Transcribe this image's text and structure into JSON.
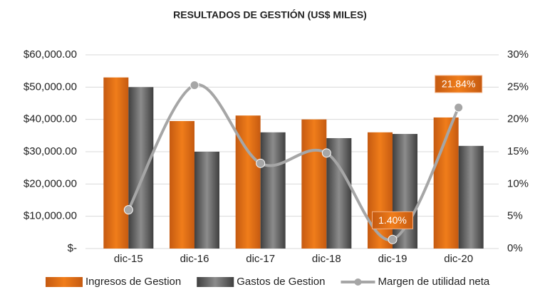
{
  "chart_data": {
    "type": "bar-line",
    "title": "RESULTADOS DE GESTIÓN (US$ MILES)",
    "categories": [
      "dic-15",
      "dic-16",
      "dic-17",
      "dic-18",
      "dic-19",
      "dic-20"
    ],
    "series": [
      {
        "name": "Ingresos de Gestion",
        "type": "bar",
        "color": "#e36c0a",
        "values": [
          53000,
          39500,
          41200,
          40000,
          36000,
          40600
        ]
      },
      {
        "name": "Gastos de Gestion",
        "type": "bar",
        "color": "#595959",
        "values": [
          50000,
          30000,
          36000,
          34200,
          35500,
          31800
        ]
      },
      {
        "name": "Margen de utilidad neta",
        "type": "line",
        "axis": "y2",
        "color": "#a6a6a6",
        "values": [
          6.0,
          25.3,
          13.2,
          14.8,
          1.4,
          21.84
        ],
        "value_labels": [
          null,
          null,
          null,
          null,
          "1.40%",
          "21.84%"
        ]
      }
    ],
    "ylim": [
      0,
      60000
    ],
    "yticks": [
      {
        "value": 0,
        "label": "$-"
      },
      {
        "value": 10000,
        "label": "$10,000.00"
      },
      {
        "value": 20000,
        "label": "$20,000.00"
      },
      {
        "value": 30000,
        "label": "$30,000.00"
      },
      {
        "value": 40000,
        "label": "$40,000.00"
      },
      {
        "value": 50000,
        "label": "$50,000.00"
      },
      {
        "value": 60000,
        "label": "$60,000.00"
      }
    ],
    "y2lim": [
      0,
      30
    ],
    "y2ticks": [
      {
        "value": 0,
        "label": "0%"
      },
      {
        "value": 5,
        "label": "5%"
      },
      {
        "value": 10,
        "label": "10%"
      },
      {
        "value": 15,
        "label": "15%"
      },
      {
        "value": 20,
        "label": "20%"
      },
      {
        "value": 25,
        "label": "25%"
      },
      {
        "value": 30,
        "label": "30%"
      }
    ],
    "grid": true,
    "legend": "bottom"
  }
}
